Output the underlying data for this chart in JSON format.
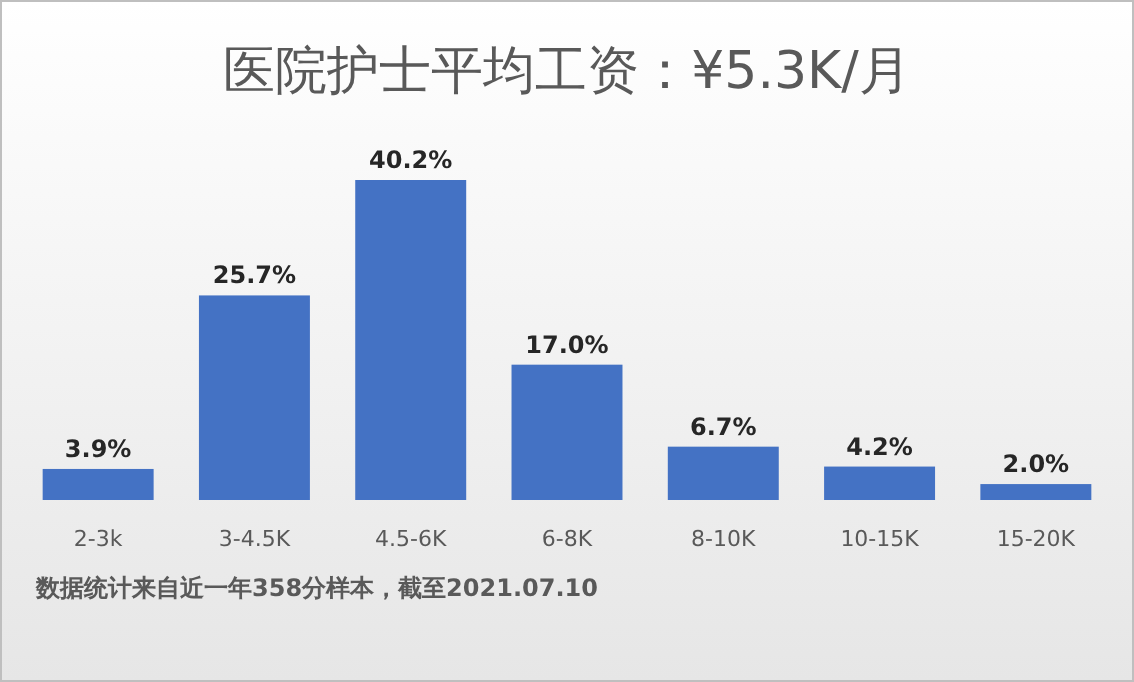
{
  "chart_data": {
    "type": "bar",
    "title": "医院护士平均工资：¥5.3K/月",
    "categories": [
      "2-3k",
      "3-4.5K",
      "4.5-6K",
      "6-8K",
      "8-10K",
      "10-15K",
      "15-20K"
    ],
    "values": [
      3.9,
      25.7,
      40.2,
      17.0,
      6.7,
      4.2,
      2.0
    ],
    "value_labels": [
      "3.9%",
      "25.7%",
      "40.2%",
      "17.0%",
      "6.7%",
      "4.2%",
      "2.0%"
    ],
    "color": "#4472c4",
    "annotations": [
      "数据统计来自近一年358分样本，截至2021.07.10"
    ]
  }
}
